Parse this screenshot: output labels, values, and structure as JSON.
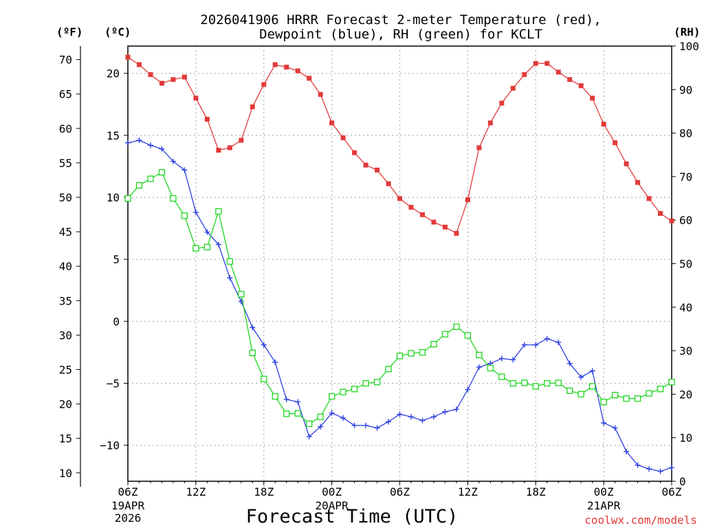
{
  "chart_data": {
    "type": "line",
    "title_lines": [
      "2026041906 HRRR Forecast 2-meter Temperature (red),",
      "Dewpoint (blue), RH (green) for KCLT"
    ],
    "xlabel": "Forecast Time (UTC)",
    "credit": "coolwx.com/models",
    "units": {
      "fahrenheit": "(ºF)",
      "celsius": "(ºC)",
      "rh": "(RH)"
    },
    "x_range_hours": [
      0,
      48
    ],
    "x_ticks": [
      {
        "hour": 0,
        "label": "06Z",
        "sub1": "19APR",
        "sub2": "2026"
      },
      {
        "hour": 6,
        "label": "12Z",
        "sub1": "",
        "sub2": ""
      },
      {
        "hour": 12,
        "label": "18Z",
        "sub1": "",
        "sub2": ""
      },
      {
        "hour": 18,
        "label": "00Z",
        "sub1": "20APR",
        "sub2": ""
      },
      {
        "hour": 24,
        "label": "06Z",
        "sub1": "",
        "sub2": ""
      },
      {
        "hour": 30,
        "label": "12Z",
        "sub1": "",
        "sub2": ""
      },
      {
        "hour": 36,
        "label": "18Z",
        "sub1": "",
        "sub2": ""
      },
      {
        "hour": 42,
        "label": "00Z",
        "sub1": "21APR",
        "sub2": ""
      },
      {
        "hour": 48,
        "label": "06Z",
        "sub1": "",
        "sub2": ""
      }
    ],
    "celsius_axis": {
      "range": [
        -12.9,
        22.2
      ],
      "ticks": [
        "-10",
        "-5",
        "0",
        "5",
        "10",
        "15",
        "20"
      ]
    },
    "fahrenheit_axis": {
      "range": [
        8.78,
        71.96
      ],
      "ticks": [
        "10",
        "15",
        "20",
        "25",
        "30",
        "35",
        "40",
        "45",
        "50",
        "55",
        "60",
        "65",
        "70"
      ]
    },
    "rh_axis": {
      "range": [
        0,
        100
      ],
      "ticks": [
        "0",
        "10",
        "20",
        "30",
        "40",
        "50",
        "60",
        "70",
        "80",
        "90",
        "100"
      ]
    },
    "grid": true,
    "colors": {
      "temperature": "#e23a3a",
      "dewpoint": "#2c3fe0",
      "rh": "#1ed51e",
      "grid": "#b0b0b0"
    },
    "series": [
      {
        "name": "Temperature",
        "axis": "celsius",
        "marker": "filled-square",
        "x": [
          0,
          1,
          2,
          3,
          4,
          5,
          6,
          7,
          8,
          9,
          10,
          11,
          12,
          13,
          14,
          15,
          16,
          17,
          18,
          19,
          20,
          21,
          22,
          23,
          24,
          25,
          26,
          27,
          28,
          29,
          30,
          31,
          32,
          33,
          34,
          35,
          36,
          37,
          38,
          39,
          40,
          41,
          42,
          43,
          44,
          45,
          46,
          47,
          48
        ],
        "values": [
          21.3,
          20.7,
          19.9,
          19.2,
          19.5,
          19.7,
          18.0,
          16.3,
          13.8,
          14.0,
          14.6,
          17.3,
          19.1,
          20.7,
          20.5,
          20.2,
          19.6,
          18.3,
          16.0,
          14.8,
          13.6,
          12.6,
          12.2,
          11.1,
          9.9,
          9.2,
          8.6,
          8.0,
          7.6,
          7.1,
          9.8,
          14.0,
          16.0,
          17.6,
          18.8,
          19.9,
          20.8,
          20.8,
          20.1,
          19.5,
          19.0,
          18.0,
          15.9,
          14.4,
          12.7,
          11.2,
          9.9,
          8.7,
          8.1
        ]
      },
      {
        "name": "Dewpoint",
        "axis": "celsius",
        "marker": "plus",
        "x": [
          0,
          1,
          2,
          3,
          4,
          5,
          6,
          7,
          8,
          9,
          10,
          11,
          12,
          13,
          14,
          15,
          16,
          17,
          18,
          19,
          20,
          21,
          22,
          23,
          24,
          25,
          26,
          27,
          28,
          29,
          30,
          31,
          32,
          33,
          34,
          35,
          36,
          37,
          38,
          39,
          40,
          41,
          42,
          43,
          44,
          45,
          46,
          47,
          48
        ],
        "values": [
          14.4,
          14.6,
          14.2,
          13.9,
          12.9,
          12.2,
          8.8,
          7.2,
          6.2,
          3.5,
          1.6,
          -0.5,
          -1.9,
          -3.3,
          -6.3,
          -6.5,
          -9.3,
          -8.5,
          -7.4,
          -7.8,
          -8.4,
          -8.4,
          -8.6,
          -8.1,
          -7.5,
          -7.7,
          -8.0,
          -7.7,
          -7.3,
          -7.1,
          -5.5,
          -3.7,
          -3.4,
          -3.0,
          -3.1,
          -1.9,
          -1.9,
          -1.4,
          -1.7,
          -3.4,
          -4.5,
          -4.0,
          -8.2,
          -8.6,
          -10.5,
          -11.6,
          -11.9,
          -12.1,
          -11.8
        ]
      },
      {
        "name": "RH",
        "axis": "rh",
        "marker": "open-square",
        "x": [
          0,
          1,
          2,
          3,
          4,
          5,
          6,
          7,
          8,
          9,
          10,
          11,
          12,
          13,
          14,
          15,
          16,
          17,
          18,
          19,
          20,
          21,
          22,
          23,
          24,
          25,
          26,
          27,
          28,
          29,
          30,
          31,
          32,
          33,
          34,
          35,
          36,
          37,
          38,
          39,
          40,
          41,
          42,
          43,
          44,
          45,
          46,
          47,
          48
        ],
        "values": [
          65,
          68,
          69.5,
          71,
          65,
          61,
          53.5,
          53.8,
          62,
          50.5,
          43,
          29.5,
          23.5,
          19.5,
          15.5,
          15.6,
          13.2,
          14.8,
          19.5,
          20.5,
          21.2,
          22.5,
          22.8,
          25.8,
          28.8,
          29.4,
          29.6,
          31.5,
          33.8,
          35.5,
          33.5,
          29,
          26,
          24,
          22.5,
          22.6,
          21.8,
          22.5,
          22.6,
          20.8,
          20,
          21.8,
          18.2,
          19.8,
          19,
          19,
          20.2,
          21.2,
          22.8
        ]
      }
    ]
  }
}
